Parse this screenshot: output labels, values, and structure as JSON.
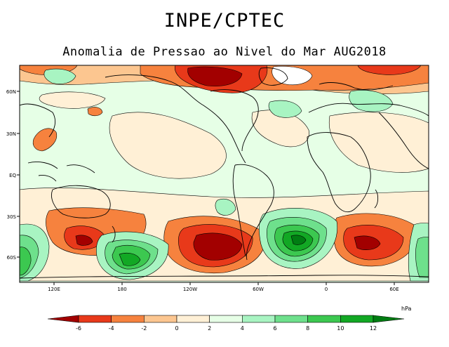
{
  "header": {
    "title": "INPE/CPTEC",
    "subtitle": "Anomalia de Pressao ao Nivel do Mar AUG2018"
  },
  "map": {
    "lat_axis": [
      "60N",
      "30N",
      "EQ",
      "30S",
      "60S"
    ],
    "lon_axis": [
      "120E",
      "180",
      "120W",
      "60W",
      "0",
      "60E"
    ]
  },
  "colorbar": {
    "unit": "hPa",
    "ticks": [
      "-6",
      "-4",
      "-2",
      "0",
      "2",
      "4",
      "6",
      "8",
      "10",
      "12"
    ],
    "colors": [
      "#a20000",
      "#e8391a",
      "#f6823e",
      "#fcc690",
      "#fff0d6",
      "#e6ffe6",
      "#a8f4c2",
      "#6ee08c",
      "#3cc850",
      "#12a824",
      "#007d12"
    ]
  }
}
